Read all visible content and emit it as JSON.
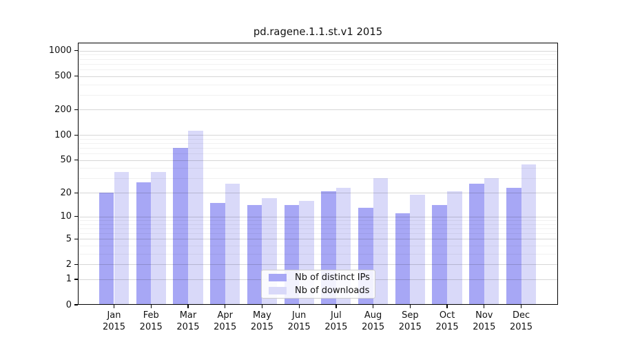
{
  "figure": {
    "title": "pd.ragene.1.1.st.v1 2015"
  },
  "chart_data": {
    "type": "bar",
    "title": "pd.ragene.1.1.st.v1 2015",
    "categories": [
      {
        "month": "Jan",
        "year": "2015"
      },
      {
        "month": "Feb",
        "year": "2015"
      },
      {
        "month": "Mar",
        "year": "2015"
      },
      {
        "month": "Apr",
        "year": "2015"
      },
      {
        "month": "May",
        "year": "2015"
      },
      {
        "month": "Jun",
        "year": "2015"
      },
      {
        "month": "Jul",
        "year": "2015"
      },
      {
        "month": "Aug",
        "year": "2015"
      },
      {
        "month": "Sep",
        "year": "2015"
      },
      {
        "month": "Oct",
        "year": "2015"
      },
      {
        "month": "Nov",
        "year": "2015"
      },
      {
        "month": "Dec",
        "year": "2015"
      }
    ],
    "series": [
      {
        "name": "Nb of distinct IPs",
        "color": "#a7a7f5",
        "values": [
          20,
          27,
          70,
          15,
          14,
          14,
          21,
          13,
          11,
          14,
          26,
          23
        ]
      },
      {
        "name": "Nb of downloads",
        "color": "#d9d9f9",
        "values": [
          36,
          36,
          112,
          26,
          17,
          16,
          23,
          30,
          19,
          21,
          30,
          44
        ]
      }
    ],
    "y_axis": {
      "scale": "log10(1+v)",
      "major_ticks": [
        0,
        1,
        2,
        5,
        10,
        20,
        50,
        100,
        200,
        500,
        1000
      ],
      "minor_ticks": [
        3,
        4,
        6,
        7,
        8,
        9,
        30,
        40,
        60,
        70,
        80,
        90,
        300,
        400,
        600,
        700,
        800,
        900
      ],
      "ylim": [
        0,
        1250
      ]
    },
    "xlabel": "",
    "ylabel": "",
    "grid": true,
    "legend_position": "lower center",
    "colors": {
      "major_grid": "rgba(0,0,0,0.16)",
      "minor_grid": "rgba(0,0,0,0.055)",
      "axis": "#000000",
      "text": "#111111"
    }
  }
}
